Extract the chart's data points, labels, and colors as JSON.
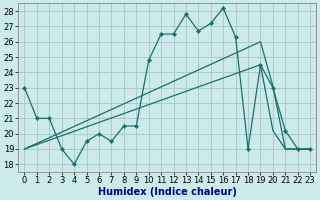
{
  "xlabel": "Humidex (Indice chaleur)",
  "background_color": "#cceaea",
  "grid_color": "#aacccc",
  "line_color": "#1a6e6e",
  "xlim": [
    -0.5,
    23.5
  ],
  "ylim": [
    17.5,
    28.5
  ],
  "yticks": [
    18,
    19,
    20,
    21,
    22,
    23,
    24,
    25,
    26,
    27,
    28
  ],
  "xticks": [
    0,
    1,
    2,
    3,
    4,
    5,
    6,
    7,
    8,
    9,
    10,
    11,
    12,
    13,
    14,
    15,
    16,
    17,
    18,
    19,
    20,
    21,
    22,
    23
  ],
  "line1_x": [
    0,
    1,
    2,
    3,
    4,
    5,
    6,
    7,
    8,
    9,
    10,
    11,
    12,
    13,
    14,
    15,
    16,
    17,
    18,
    19,
    20,
    21,
    22,
    23
  ],
  "line1_y": [
    23.0,
    21.0,
    21.0,
    19.0,
    18.0,
    19.5,
    20.0,
    19.5,
    20.5,
    20.5,
    24.8,
    26.5,
    26.5,
    27.8,
    26.7,
    27.2,
    28.2,
    26.3,
    19.0,
    24.5,
    23.0,
    20.2,
    19.0,
    19.0
  ],
  "line2_x": [
    0,
    19,
    20,
    21,
    22,
    23
  ],
  "line2_y": [
    19.0,
    26.0,
    23.1,
    19.0,
    19.0,
    19.0
  ],
  "line3_x": [
    0,
    19,
    20,
    21,
    22,
    23
  ],
  "line3_y": [
    19.0,
    24.5,
    20.2,
    19.0,
    19.0,
    19.0
  ],
  "xlabel_color": "#00008b",
  "xlabel_fontsize": 7.0,
  "tick_fontsize": 6.0
}
